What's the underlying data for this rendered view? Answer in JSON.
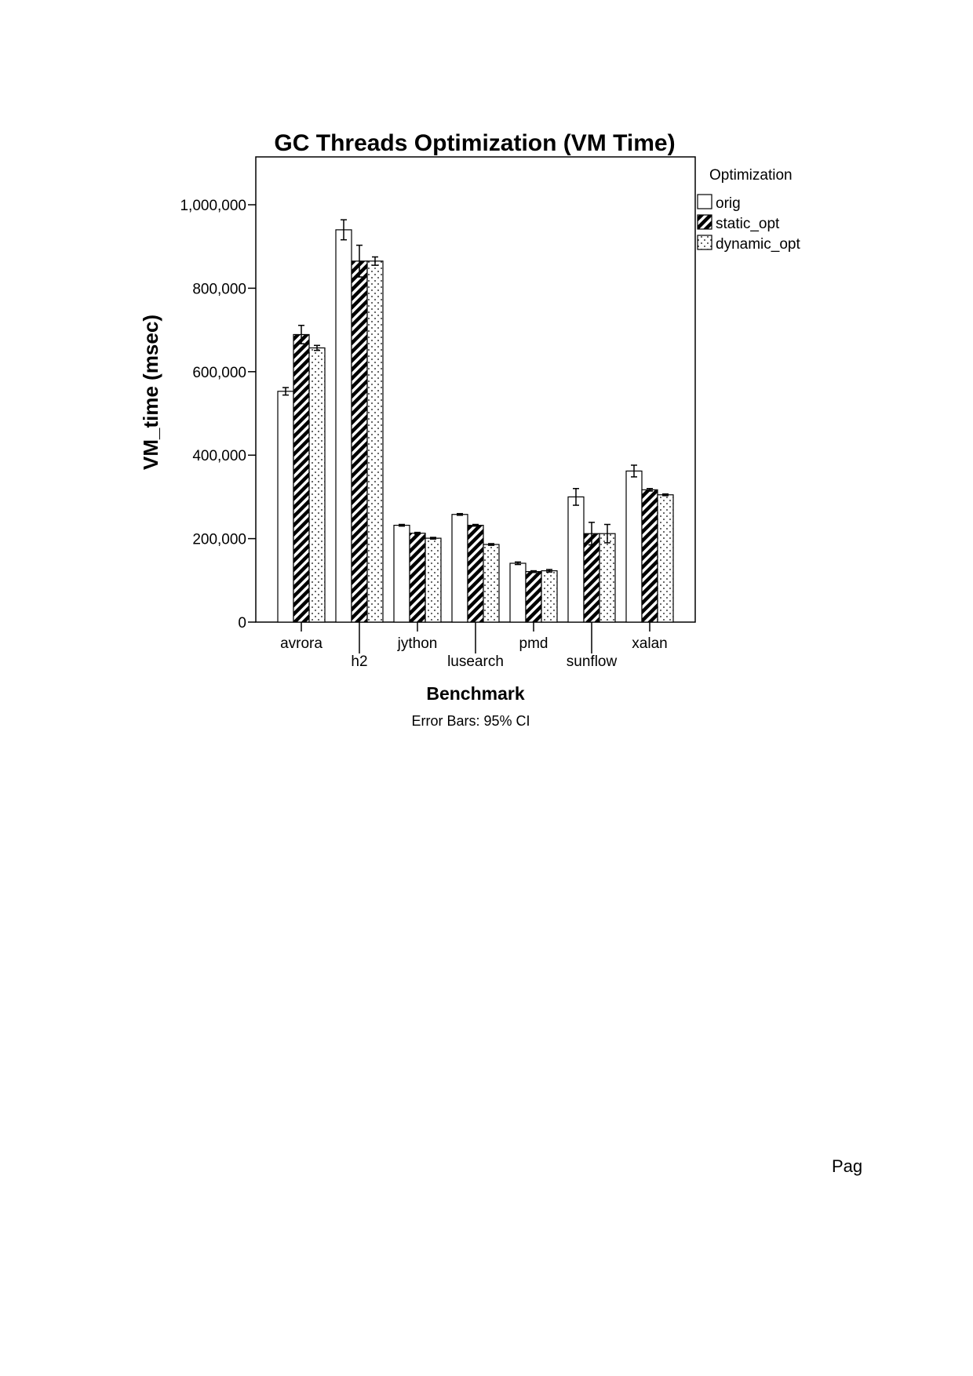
{
  "chart_data": {
    "type": "bar",
    "title": "GC Threads Optimization (VM Time)",
    "xlabel": "Benchmark",
    "ylabel": "VM_time (msec)",
    "footnote": "Error Bars: 95% CI",
    "legend_title": "Optimization",
    "legend_position": "right",
    "grid": false,
    "ylim": [
      0,
      1000000
    ],
    "yticks": [
      0,
      200000,
      400000,
      600000,
      800000,
      1000000
    ],
    "ytick_labels": [
      "0",
      "200,000",
      "400,000",
      "600,000",
      "800,000",
      "1,000,000"
    ],
    "categories": [
      "avrora",
      "h2",
      "jython",
      "lusearch",
      "pmd",
      "sunflow",
      "xalan"
    ],
    "series": [
      {
        "name": "orig",
        "pattern": "solid-white",
        "values": [
          553000,
          940000,
          232000,
          258000,
          141000,
          300000,
          362000
        ],
        "error": [
          9000,
          24000,
          2000,
          2000,
          3000,
          20000,
          14000
        ]
      },
      {
        "name": "static_opt",
        "pattern": "diagonal-hatch",
        "values": [
          689000,
          865000,
          213000,
          232000,
          121000,
          212000,
          317000
        ],
        "error": [
          22000,
          38000,
          2000,
          2000,
          2000,
          27000,
          3000
        ]
      },
      {
        "name": "dynamic_opt",
        "pattern": "dotted",
        "values": [
          657000,
          865000,
          201000,
          186000,
          123000,
          212000,
          305000
        ],
        "error": [
          6000,
          10000,
          2000,
          2000,
          3000,
          22000,
          2000
        ]
      }
    ],
    "colors": {
      "bar_fill": "#ffffff",
      "stroke": "#000000",
      "hatch": "#000000"
    }
  },
  "page": {
    "footer_fragment": "Pag"
  }
}
